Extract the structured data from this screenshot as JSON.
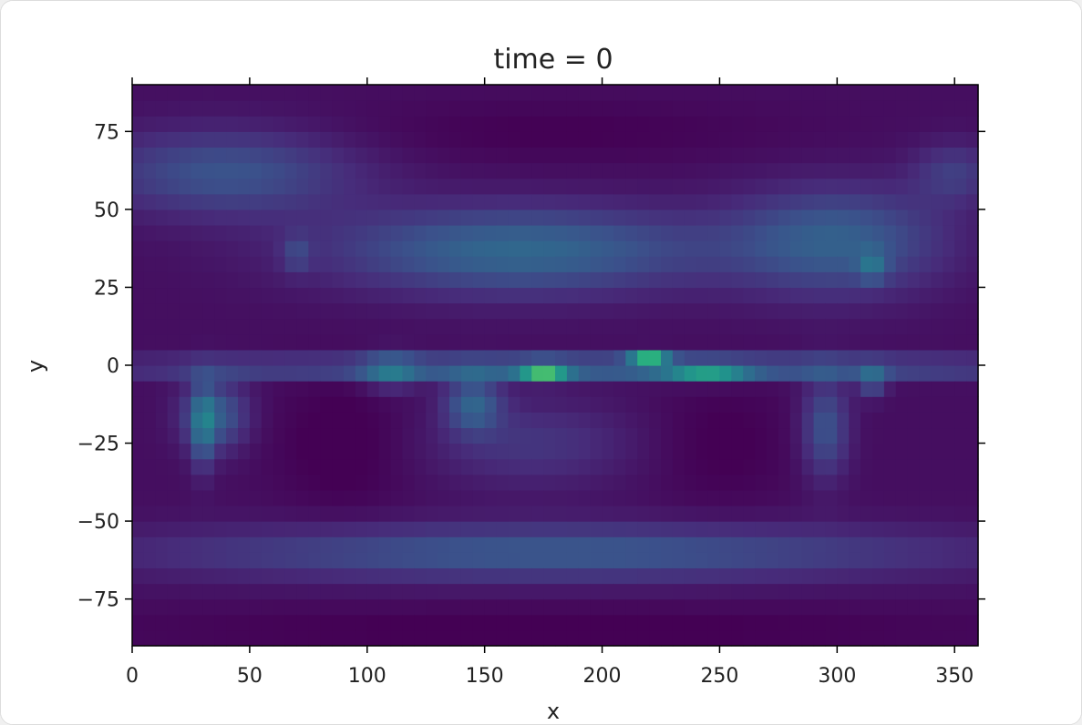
{
  "chart_data": {
    "type": "heatmap",
    "title": "time = 0",
    "xlabel": "x",
    "ylabel": "y",
    "xlim": [
      0,
      360
    ],
    "ylim": [
      -90,
      90
    ],
    "x_ticks": [
      0,
      50,
      100,
      150,
      200,
      250,
      300,
      350
    ],
    "y_ticks": [
      -75,
      -50,
      -25,
      0,
      25,
      50,
      75
    ],
    "x_tick_labels": [
      "0",
      "50",
      "100",
      "150",
      "200",
      "250",
      "300",
      "350"
    ],
    "y_tick_labels": [
      "−75",
      "−50",
      "−25",
      "0",
      "25",
      "50",
      "75"
    ],
    "colormap": "viridis",
    "colorbar": false,
    "grid": false
  }
}
